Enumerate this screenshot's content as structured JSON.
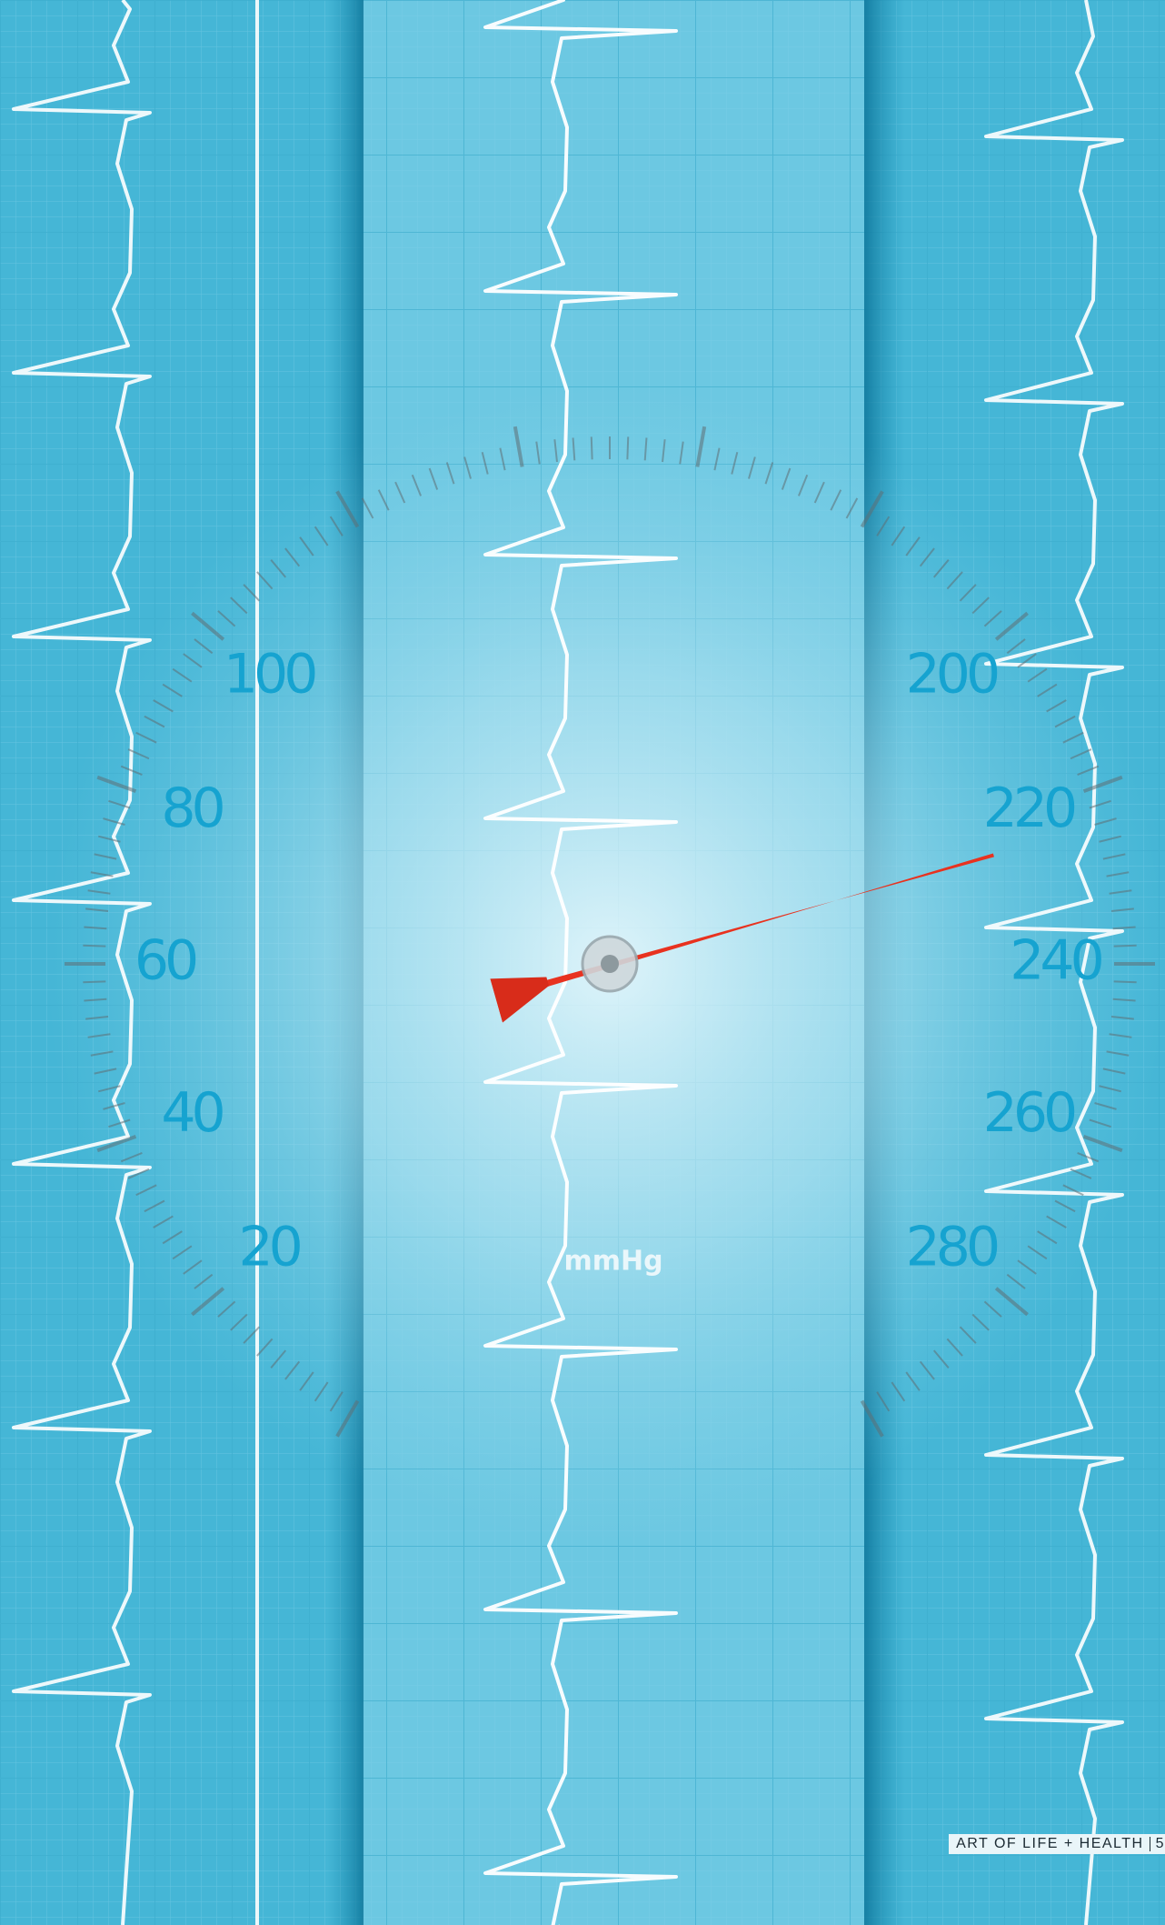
{
  "gauge": {
    "left_labels": [
      100,
      80,
      60,
      40,
      20
    ],
    "right_labels": [
      200,
      220,
      240,
      260,
      280
    ],
    "unit": "mmHg"
  },
  "footer": {
    "publication": "ART OF LIFE + HEALTH",
    "page": 5
  }
}
